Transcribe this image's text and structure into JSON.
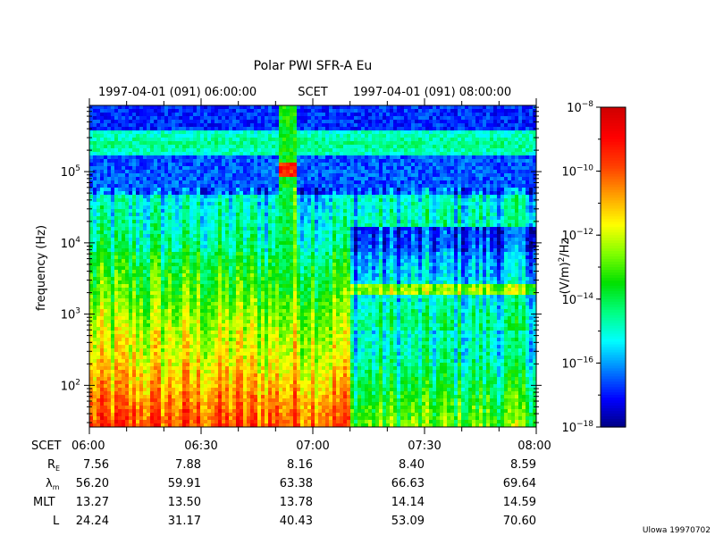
{
  "chart_data": {
    "type": "heatmap",
    "title": "Polar PWI SFR-A Eu",
    "top_axis": {
      "start_label": "1997-04-01 (091) 06:00:00",
      "center_label": "SCET",
      "end_label": "1997-04-01 (091) 08:00:00"
    },
    "ylabel": "frequency (Hz)",
    "y_scale": "log",
    "ylim": [
      26,
      850000
    ],
    "y_ticks": [
      {
        "base": "10",
        "exp": "2",
        "value": 100
      },
      {
        "base": "10",
        "exp": "3",
        "value": 1000
      },
      {
        "base": "10",
        "exp": "4",
        "value": 10000
      },
      {
        "base": "10",
        "exp": "5",
        "value": 100000
      }
    ],
    "x_range_minutes": [
      0,
      120
    ],
    "colorbar": {
      "label_parts": [
        "(V/m)",
        "2",
        "/Hz"
      ],
      "scale": "log",
      "range": [
        1e-18,
        1e-08
      ],
      "ticks": [
        {
          "base": "10",
          "exp": "−8",
          "value": 1e-08
        },
        {
          "base": "10",
          "exp": "−10",
          "value": 1e-10
        },
        {
          "base": "10",
          "exp": "−12",
          "value": 1e-12
        },
        {
          "base": "10",
          "exp": "−14",
          "value": 1e-14
        },
        {
          "base": "10",
          "exp": "−16",
          "value": 1e-16
        },
        {
          "base": "10",
          "exp": "−18",
          "value": 1e-18
        }
      ],
      "colors": [
        "#00007f",
        "#0000ff",
        "#0080ff",
        "#00ffff",
        "#00ff80",
        "#00e000",
        "#80ff00",
        "#ffff00",
        "#ffa000",
        "#ff4000",
        "#ff0000",
        "#d00000"
      ]
    },
    "ephemeris": {
      "row_labels": {
        "scet": "SCET",
        "re_base": "R",
        "re_sub": "E",
        "lam_base": "λ",
        "lam_sub": "m",
        "mlt": "MLT",
        "l": "L"
      },
      "minutes": [
        0,
        30,
        60,
        90,
        120
      ],
      "scet": [
        "06:00",
        "06:30",
        "07:00",
        "07:30",
        "08:00"
      ],
      "re": [
        "7.56",
        "7.88",
        "8.16",
        "8.40",
        "8.59"
      ],
      "lambda_m": [
        "56.20",
        "59.91",
        "63.38",
        "66.63",
        "69.64"
      ],
      "mlt": [
        "13.27",
        "13.50",
        "13.78",
        "14.14",
        "14.59"
      ],
      "l": [
        "24.24",
        "31.17",
        "40.43",
        "53.09",
        "70.60"
      ]
    },
    "credit": "Ulowa 19970702"
  }
}
